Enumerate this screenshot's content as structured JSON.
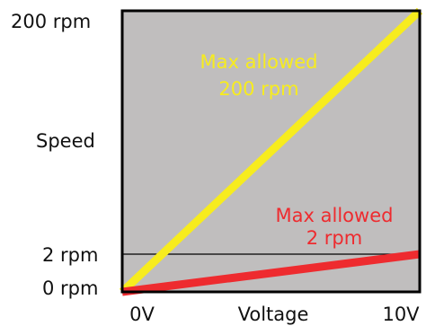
{
  "chart_data": {
    "type": "line",
    "xlabel": "Voltage",
    "ylabel": "Speed",
    "x_ticks": [
      "0V",
      "10V"
    ],
    "y_ticks": [
      "0 rpm",
      "2 rpm",
      "200 rpm"
    ],
    "xlim": [
      0,
      10
    ],
    "y_scale": "schematic (not to scale)",
    "grid": false,
    "background_color": "#c0bebe",
    "series": [
      {
        "x": [
          0,
          10
        ],
        "y": [
          0,
          200
        ],
        "color": "#f7ec1e",
        "annotation_line1": "Max allowed",
        "annotation_line2": "200 rpm"
      },
      {
        "x": [
          0,
          10
        ],
        "y": [
          0,
          2
        ],
        "color": "#ee2b2f",
        "annotation_line1": "Max allowed",
        "annotation_line2": "2 rpm"
      }
    ],
    "reference_line": {
      "label": "2 rpm",
      "color": "#000000"
    }
  }
}
